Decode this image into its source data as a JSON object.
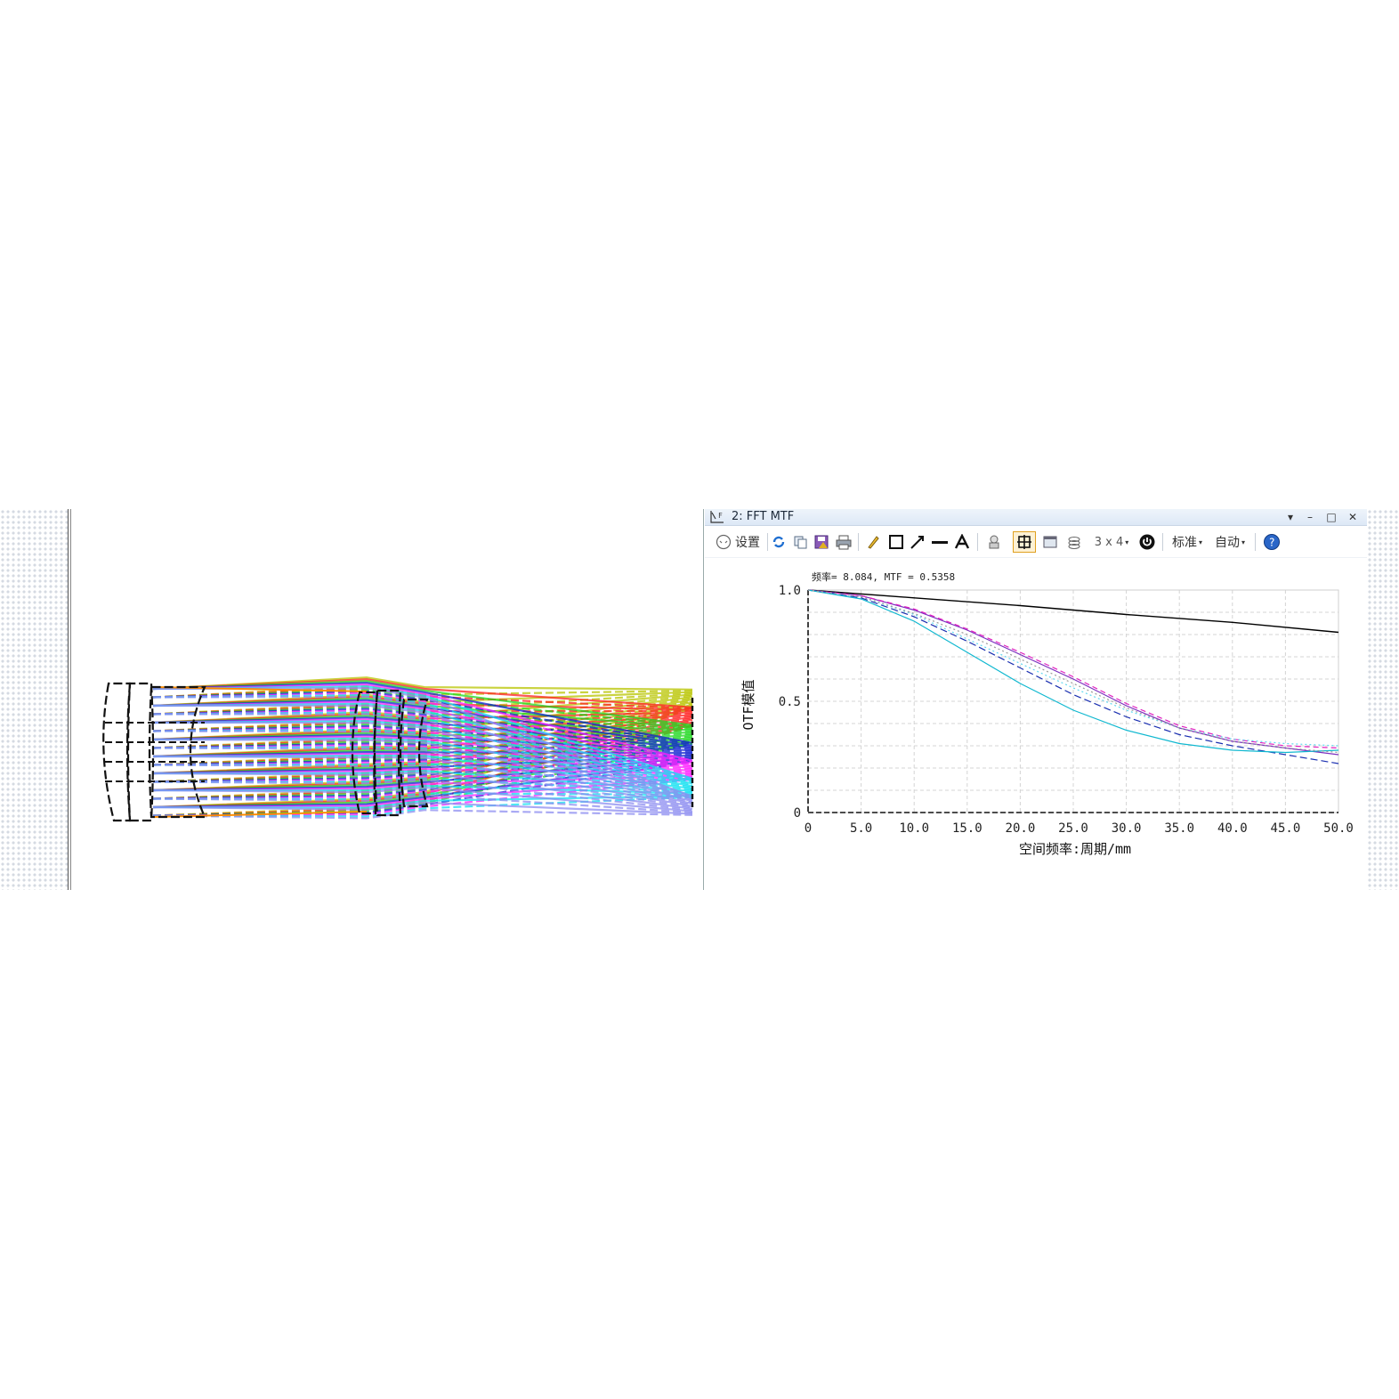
{
  "window": {
    "title": "2: FFT MTF",
    "controls": [
      "▾",
      "–",
      "□",
      "✕"
    ]
  },
  "toolbar": {
    "settings_label": "设置",
    "layout_label": "3 x 4",
    "standard_label": "标准",
    "auto_label": "自动"
  },
  "cursor_readout": "频率= 8.084, MTF = 0.5358",
  "chart_data": {
    "type": "line",
    "xlabel": "空间频率:周期/mm",
    "ylabel": "OTF模值",
    "xlim": [
      0,
      50
    ],
    "ylim": [
      0,
      1
    ],
    "x_ticks": [
      "0",
      "5.0",
      "10.0",
      "15.0",
      "20.0",
      "25.0",
      "30.0",
      "35.0",
      "40.0",
      "45.0",
      "50.0"
    ],
    "y_ticks": [
      "0",
      "0.5",
      "1.0"
    ],
    "grid": true,
    "series": [
      {
        "color": "#000000",
        "dash": "none",
        "x": [
          0,
          10,
          20,
          30,
          40,
          50
        ],
        "y": [
          1.0,
          0.965,
          0.93,
          0.89,
          0.855,
          0.81
        ]
      },
      {
        "color": "#7b2fbf",
        "dash": "none",
        "x": [
          0,
          5,
          10,
          15,
          20,
          25,
          30,
          35,
          40,
          45,
          50
        ],
        "y": [
          1.0,
          0.975,
          0.91,
          0.82,
          0.71,
          0.6,
          0.48,
          0.38,
          0.32,
          0.29,
          0.26
        ]
      },
      {
        "color": "#e020c0",
        "dash": "6,4",
        "x": [
          0,
          5,
          10,
          15,
          20,
          25,
          30,
          35,
          40,
          45,
          50
        ],
        "y": [
          1.0,
          0.975,
          0.915,
          0.825,
          0.72,
          0.61,
          0.49,
          0.39,
          0.33,
          0.3,
          0.29
        ]
      },
      {
        "color": "#1a2fb0",
        "dash": "8,4",
        "x": [
          0,
          5,
          10,
          15,
          20,
          25,
          30,
          35,
          40,
          45,
          50
        ],
        "y": [
          1.0,
          0.965,
          0.88,
          0.77,
          0.65,
          0.53,
          0.43,
          0.35,
          0.3,
          0.26,
          0.22
        ]
      },
      {
        "color": "#10b8d0",
        "dash": "none",
        "x": [
          0,
          5,
          10,
          15,
          20,
          25,
          30,
          35,
          40,
          45,
          50
        ],
        "y": [
          1.0,
          0.96,
          0.86,
          0.72,
          0.58,
          0.46,
          0.37,
          0.31,
          0.28,
          0.27,
          0.28
        ]
      },
      {
        "color": "#60d8f0",
        "dash": "2,3",
        "x": [
          0,
          5,
          10,
          15,
          20,
          25,
          30,
          35,
          40,
          45,
          50
        ],
        "y": [
          1.0,
          0.97,
          0.89,
          0.78,
          0.67,
          0.56,
          0.46,
          0.38,
          0.33,
          0.31,
          0.3
        ]
      },
      {
        "color": "#999999",
        "dash": "2,3",
        "x": [
          0,
          5,
          10,
          15,
          20,
          25,
          30,
          35,
          40,
          45,
          50
        ],
        "y": [
          1.0,
          0.97,
          0.895,
          0.8,
          0.69,
          0.58,
          0.47,
          0.38,
          0.32,
          0.29,
          0.27
        ]
      }
    ]
  },
  "layout_diagram": {
    "ray_colors": [
      "#b8c400",
      "#ff2020",
      "#20d820",
      "#1020d0",
      "#ff20ff",
      "#10e0f0",
      "#8c8cf0",
      "#ff8c00"
    ]
  }
}
